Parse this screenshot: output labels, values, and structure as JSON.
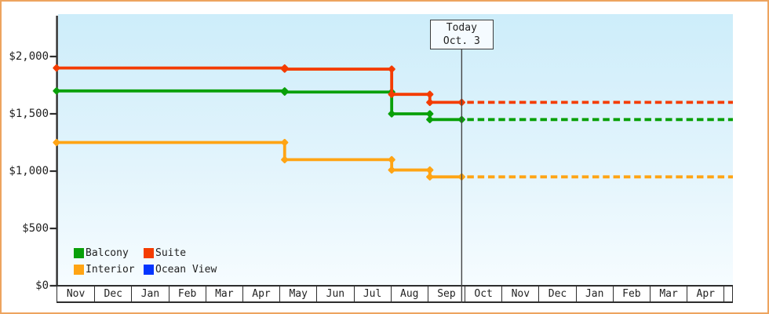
{
  "colors": {
    "frame_border": "#eda45f",
    "plot_bg_top": "#cdedfa",
    "plot_bg_bottom": "#f6fcff",
    "axis": "#2e2e2e",
    "today_line": "#444444",
    "text": "#222222"
  },
  "chart_data": {
    "type": "line",
    "style": "step",
    "grid": false,
    "legend_position": "bottom-left-inside",
    "ylim": [
      0,
      2370
    ],
    "y_ticks": [
      {
        "label": "$2,000",
        "value": 2000
      },
      {
        "label": "$1,500",
        "value": 1500
      },
      {
        "label": "$1,000",
        "value": 1000
      },
      {
        "label": "$500",
        "value": 500
      },
      {
        "label": "$0",
        "value": 0
      }
    ],
    "months": [
      "Nov",
      "Dec",
      "Jan",
      "Feb",
      "Mar",
      "Apr",
      "May",
      "Jun",
      "Jul",
      "Aug",
      "Sep",
      "Oct",
      "Nov",
      "Dec",
      "Jan",
      "Feb",
      "Mar",
      "Apr"
    ],
    "today": {
      "line1": "Today",
      "line2": "Oct. 3",
      "month_index": 10.94
    },
    "series": [
      {
        "name": "Balcony",
        "color": "#09a009",
        "points": [
          [
            0,
            1700
          ],
          [
            6.16,
            1690
          ],
          [
            9.05,
            1500
          ],
          [
            10.08,
            1450
          ]
        ],
        "forecast_price": 1450
      },
      {
        "name": "Suite",
        "color": "#f43c00",
        "points": [
          [
            0,
            1900
          ],
          [
            6.16,
            1890
          ],
          [
            9.05,
            1670
          ],
          [
            10.08,
            1600
          ]
        ],
        "forecast_price": 1600
      },
      {
        "name": "Interior",
        "color": "#ffa414",
        "points": [
          [
            0,
            1250
          ],
          [
            6.16,
            1100
          ],
          [
            9.05,
            1010
          ],
          [
            10.08,
            950
          ]
        ],
        "forecast_price": 950
      },
      {
        "name": "Ocean View",
        "color": "#0535ff",
        "points": [],
        "forecast_price": null
      }
    ],
    "legend": {
      "items": [
        {
          "label": "Balcony",
          "color": "#09a009"
        },
        {
          "label": "Suite",
          "color": "#f43c00"
        },
        {
          "label": "Interior",
          "color": "#ffa414"
        },
        {
          "label": "Ocean View",
          "color": "#0535ff"
        }
      ]
    }
  }
}
